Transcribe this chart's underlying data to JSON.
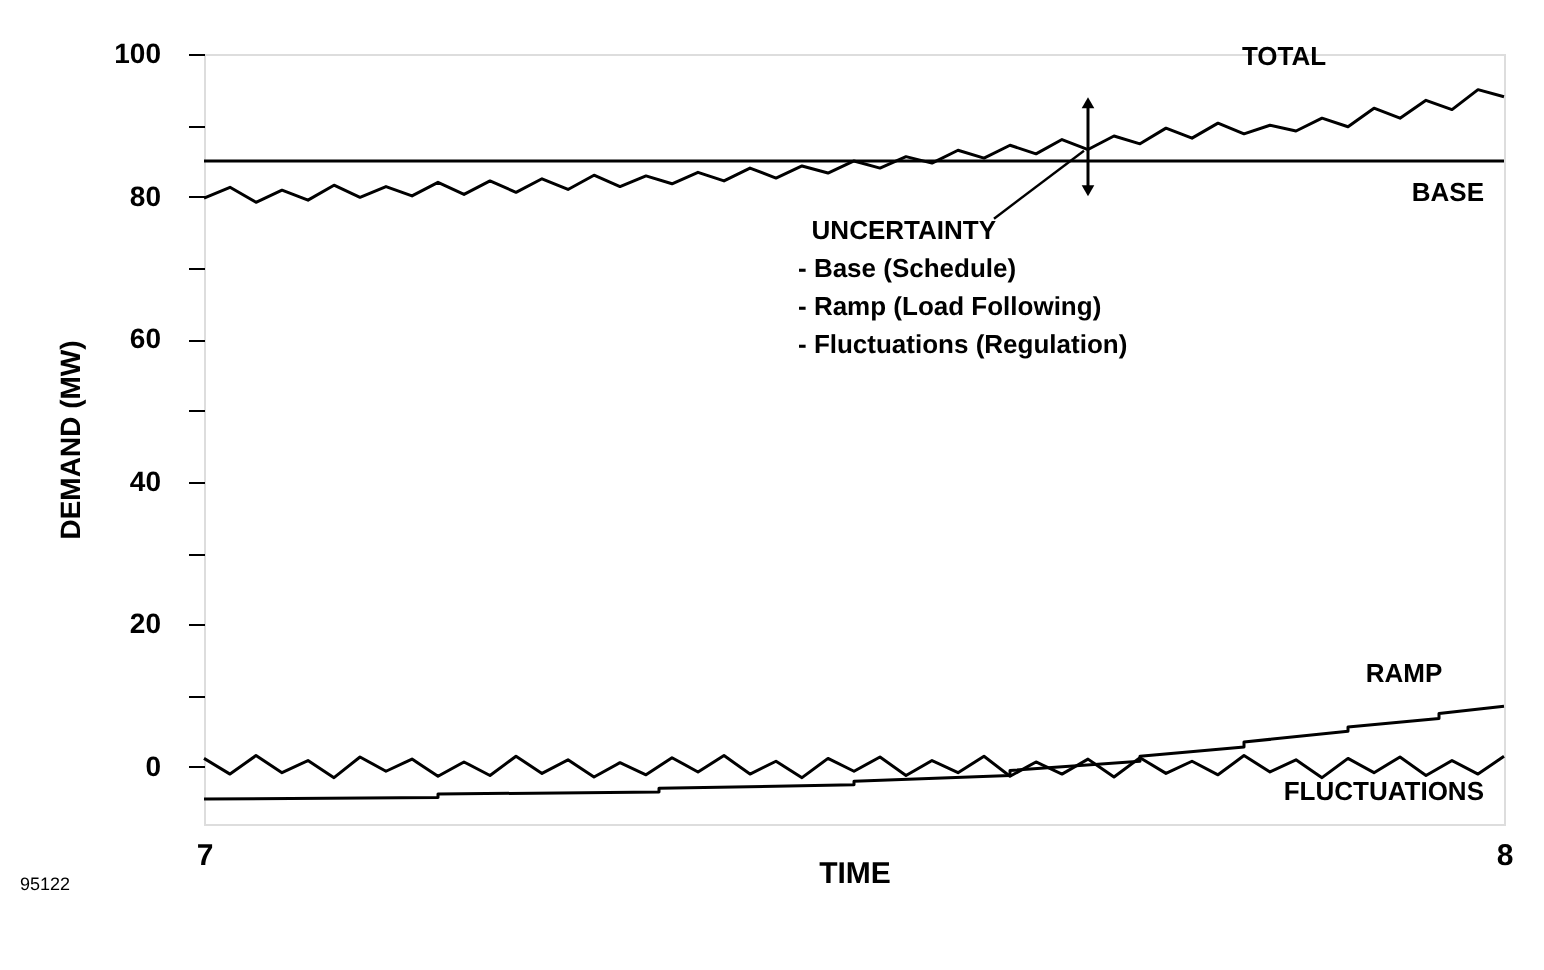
{
  "chart_data": {
    "type": "line",
    "xlabel": "TIME",
    "ylabel": "DEMAND (MW)",
    "xlim": [
      7,
      8
    ],
    "xticks": [
      7,
      8
    ],
    "ylim": [
      -8,
      100
    ],
    "yticks": [
      0,
      {
        "value": 10,
        "label": null
      },
      20,
      {
        "value": 30,
        "label": null
      },
      40,
      {
        "value": 50,
        "label": null
      },
      60,
      {
        "value": 70,
        "label": null
      },
      80,
      {
        "value": 90,
        "label": null
      },
      100
    ],
    "grid": false,
    "legend": false,
    "marker": "none",
    "line_style": "solid",
    "series": [
      {
        "name": "TOTAL",
        "color": "#000000",
        "x": [
          7.0,
          7.02,
          7.04,
          7.06,
          7.08,
          7.1,
          7.12,
          7.14,
          7.16,
          7.18,
          7.2,
          7.22,
          7.24,
          7.26,
          7.28,
          7.3,
          7.32,
          7.34,
          7.36,
          7.38,
          7.4,
          7.42,
          7.44,
          7.46,
          7.48,
          7.5,
          7.52,
          7.54,
          7.56,
          7.58,
          7.6,
          7.62,
          7.64,
          7.66,
          7.68,
          7.7,
          7.72,
          7.74,
          7.76,
          7.78,
          7.8,
          7.82,
          7.84,
          7.86,
          7.88,
          7.9,
          7.92,
          7.94,
          7.96,
          7.98,
          8.0
        ],
        "values": [
          79.8,
          81.3,
          79.2,
          80.9,
          79.5,
          81.6,
          79.9,
          81.4,
          80.1,
          82.0,
          80.3,
          82.2,
          80.6,
          82.5,
          81.0,
          83.0,
          81.4,
          82.9,
          81.8,
          83.4,
          82.2,
          84.0,
          82.6,
          84.3,
          83.3,
          85.0,
          84.0,
          85.6,
          84.7,
          86.5,
          85.4,
          87.2,
          86.0,
          88.0,
          86.6,
          88.5,
          87.4,
          89.6,
          88.2,
          90.3,
          88.8,
          90.0,
          89.2,
          91.0,
          89.8,
          92.4,
          91.0,
          93.5,
          92.2,
          95.0,
          94.0
        ]
      },
      {
        "name": "BASE",
        "color": "#000000",
        "x": [
          7,
          8
        ],
        "values": [
          85,
          85
        ]
      },
      {
        "name": "RAMP",
        "color": "#000000",
        "x": [
          7,
          7.18,
          7.18,
          7.35,
          7.35,
          7.5,
          7.5,
          7.62,
          7.62,
          7.72,
          7.72,
          7.8,
          7.8,
          7.88,
          7.88,
          7.95,
          7.95,
          8
        ],
        "values": [
          -4.5,
          -4.3,
          -3.8,
          -3.5,
          -3.0,
          -2.5,
          -2.0,
          -1.2,
          -0.5,
          0.8,
          1.5,
          2.8,
          3.5,
          5.0,
          5.6,
          6.8,
          7.5,
          8.5
        ]
      },
      {
        "name": "FLUCTUATIONS",
        "color": "#000000",
        "x": [
          7.0,
          7.02,
          7.04,
          7.06,
          7.08,
          7.1,
          7.12,
          7.14,
          7.16,
          7.18,
          7.2,
          7.22,
          7.24,
          7.26,
          7.28,
          7.3,
          7.32,
          7.34,
          7.36,
          7.38,
          7.4,
          7.42,
          7.44,
          7.46,
          7.48,
          7.5,
          7.52,
          7.54,
          7.56,
          7.58,
          7.6,
          7.62,
          7.64,
          7.66,
          7.68,
          7.7,
          7.72,
          7.74,
          7.76,
          7.78,
          7.8,
          7.82,
          7.84,
          7.86,
          7.88,
          7.9,
          7.92,
          7.94,
          7.96,
          7.98,
          8.0
        ],
        "values": [
          1.2,
          -1.0,
          1.6,
          -0.8,
          0.9,
          -1.5,
          1.4,
          -0.6,
          1.1,
          -1.3,
          0.7,
          -1.2,
          1.5,
          -0.9,
          1.0,
          -1.4,
          0.6,
          -1.1,
          1.3,
          -0.7,
          1.6,
          -1.0,
          0.8,
          -1.5,
          1.2,
          -0.6,
          1.4,
          -1.2,
          0.9,
          -0.8,
          1.5,
          -1.3,
          0.7,
          -1.0,
          1.1,
          -1.4,
          1.3,
          -0.9,
          0.8,
          -1.1,
          1.6,
          -0.7,
          1.0,
          -1.5,
          1.2,
          -0.8,
          1.4,
          -1.2,
          0.9,
          -1.0,
          1.5
        ]
      }
    ],
    "annotations": [
      {
        "text": "UNCERTAINTY",
        "x": 7.68,
        "y": 87
      },
      "- Base (Schedule)",
      "- Ramp (Load Following)",
      "- Fluctuations (Regulation)",
      "95122"
    ]
  }
}
